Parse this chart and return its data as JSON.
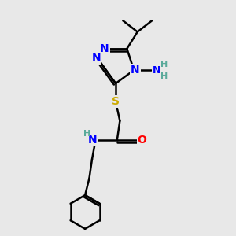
{
  "bg_color": "#e8e8e8",
  "bond_color": "#000000",
  "bond_width": 1.8,
  "atom_colors": {
    "N": "#0000ff",
    "S": "#ccaa00",
    "O": "#ff0000",
    "C": "#000000",
    "H": "#5aaa9a"
  },
  "font_size": 10,
  "fig_size": [
    3.0,
    3.0
  ],
  "dpi": 100,
  "xlim": [
    0,
    10
  ],
  "ylim": [
    0,
    10
  ]
}
